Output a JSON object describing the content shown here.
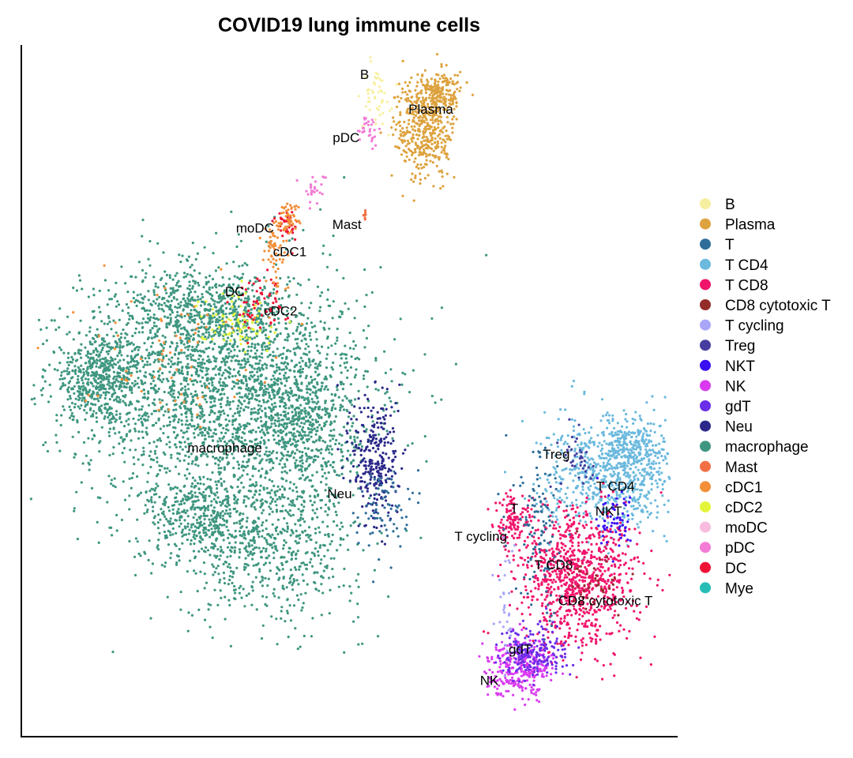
{
  "chart_data": {
    "type": "scatter",
    "title": "COVID19 lung immune cells",
    "xlabel": "",
    "ylabel": "",
    "xlim": [
      0,
      100
    ],
    "ylim": [
      0,
      100
    ],
    "grid": false,
    "legend_position": "right",
    "legend": [
      {
        "name": "B",
        "color": "#F7EFA0"
      },
      {
        "name": "Plasma",
        "color": "#DDA23E"
      },
      {
        "name": "T",
        "color": "#2E6D9A"
      },
      {
        "name": "T CD4",
        "color": "#6BB9DD"
      },
      {
        "name": "T CD8",
        "color": "#F0146B"
      },
      {
        "name": "CD8 cytotoxic T",
        "color": "#922D2A"
      },
      {
        "name": "T cycling",
        "color": "#A9A6F8"
      },
      {
        "name": "Treg",
        "color": "#463E9E"
      },
      {
        "name": "NKT",
        "color": "#3A0FF2"
      },
      {
        "name": "NK",
        "color": "#D93AF0"
      },
      {
        "name": "gdT",
        "color": "#6B2DE8"
      },
      {
        "name": "Neu",
        "color": "#2B2889"
      },
      {
        "name": "macrophage",
        "color": "#3E9680"
      },
      {
        "name": "Mast",
        "color": "#F26F44"
      },
      {
        "name": "cDC1",
        "color": "#F28F38"
      },
      {
        "name": "cDC2",
        "color": "#E2F53A"
      },
      {
        "name": "moDC",
        "color": "#F7BCDF"
      },
      {
        "name": "pDC",
        "color": "#F27BD5"
      },
      {
        "name": "DC",
        "color": "#EE1336"
      },
      {
        "name": "Mye",
        "color": "#27BDB7"
      }
    ],
    "cluster_labels": [
      {
        "text": "B",
        "x": 52.3,
        "y": 95.6
      },
      {
        "text": "Plasma",
        "x": 62.4,
        "y": 90.6
      },
      {
        "text": "pDC",
        "x": 49.5,
        "y": 86.5
      },
      {
        "text": "moDC",
        "x": 35.6,
        "y": 73.4
      },
      {
        "text": "Mast",
        "x": 49.6,
        "y": 73.9
      },
      {
        "text": "cDC1",
        "x": 40.9,
        "y": 70.0
      },
      {
        "text": "DC",
        "x": 32.5,
        "y": 64.2
      },
      {
        "text": "cDC2",
        "x": 39.5,
        "y": 61.4
      },
      {
        "text": "macrophage",
        "x": 31.0,
        "y": 41.6
      },
      {
        "text": "Neu",
        "x": 48.5,
        "y": 35.0
      },
      {
        "text": "Treg",
        "x": 81.5,
        "y": 40.7
      },
      {
        "text": "T CD4",
        "x": 90.5,
        "y": 36.1
      },
      {
        "text": "T",
        "x": 75.1,
        "y": 32.9
      },
      {
        "text": "NKT",
        "x": 89.5,
        "y": 32.5
      },
      {
        "text": "T cycling",
        "x": 70.0,
        "y": 28.8
      },
      {
        "text": "T CD8",
        "x": 81.1,
        "y": 24.7
      },
      {
        "text": "CD8 cytotoxic T",
        "x": 89.0,
        "y": 19.5
      },
      {
        "text": "gdT",
        "x": 76.0,
        "y": 12.5
      },
      {
        "text": "NK",
        "x": 71.3,
        "y": 8.0
      }
    ],
    "clusters": [
      {
        "name": "macrophage",
        "color": "#3E9680",
        "x": 31,
        "y": 50,
        "sx": 11,
        "sy": 9,
        "n": 2400
      },
      {
        "name": "macrophage",
        "color": "#3E9680",
        "x": 12,
        "y": 52,
        "sx": 4,
        "sy": 3,
        "n": 500
      },
      {
        "name": "macrophage",
        "color": "#3E9680",
        "x": 27,
        "y": 61,
        "sx": 6,
        "sy": 3,
        "n": 500
      },
      {
        "name": "macrophage",
        "color": "#3E9680",
        "x": 43,
        "y": 45,
        "sx": 4,
        "sy": 6,
        "n": 500
      },
      {
        "name": "macrophage",
        "color": "#3E9680",
        "x": 38,
        "y": 27,
        "sx": 7,
        "sy": 5,
        "n": 600
      },
      {
        "name": "macrophage",
        "color": "#3E9680",
        "x": 27,
        "y": 32,
        "sx": 4,
        "sy": 3,
        "n": 350
      },
      {
        "name": "Neu",
        "color": "#2B2889",
        "x": 54,
        "y": 40,
        "sx": 1.8,
        "sy": 5,
        "n": 280
      },
      {
        "name": "T",
        "color": "#2E6D9A",
        "x": 55,
        "y": 33,
        "sx": 2,
        "sy": 3,
        "n": 80
      },
      {
        "name": "cDC1",
        "color": "#F28F38",
        "x": 22,
        "y": 56,
        "sx": 7,
        "sy": 5,
        "n": 70
      },
      {
        "name": "cDC2",
        "color": "#E2F53A",
        "x": 33,
        "y": 60,
        "sx": 3,
        "sy": 2,
        "n": 80
      },
      {
        "name": "DC",
        "color": "#EE1336",
        "x": 36,
        "y": 63,
        "sx": 2,
        "sy": 2,
        "n": 60
      },
      {
        "name": "cDC1",
        "color": "#F28F38",
        "x": 38.5,
        "y": 70,
        "sx": 1,
        "sy": 3,
        "n": 60
      },
      {
        "name": "DC",
        "color": "#EE1336",
        "x": 40.5,
        "y": 74,
        "sx": 0.8,
        "sy": 1.2,
        "n": 40
      },
      {
        "name": "cDC1",
        "color": "#F28F38",
        "x": 40.8,
        "y": 75,
        "sx": 0.8,
        "sy": 1.2,
        "n": 50
      },
      {
        "name": "pDC",
        "color": "#F27BD5",
        "x": 44.5,
        "y": 79,
        "sx": 1,
        "sy": 1.2,
        "n": 25
      },
      {
        "name": "Mast",
        "color": "#F26F44",
        "x": 52.5,
        "y": 75.5,
        "sx": 0.3,
        "sy": 0.3,
        "n": 8
      },
      {
        "name": "Plasma",
        "color": "#DDA23E",
        "x": 61.5,
        "y": 88,
        "sx": 2.3,
        "sy": 3.8,
        "n": 450
      },
      {
        "name": "Plasma",
        "color": "#DDA23E",
        "x": 64,
        "y": 93,
        "sx": 1.5,
        "sy": 1.5,
        "n": 150
      },
      {
        "name": "B",
        "color": "#F7EFA0",
        "x": 54,
        "y": 93,
        "sx": 1,
        "sy": 2.5,
        "n": 50
      },
      {
        "name": "pDC",
        "color": "#F27BD5",
        "x": 53,
        "y": 87.5,
        "sx": 1,
        "sy": 1.2,
        "n": 30
      },
      {
        "name": "T CD4",
        "color": "#6BB9DD",
        "x": 90,
        "y": 38,
        "sx": 5,
        "sy": 4,
        "n": 700
      },
      {
        "name": "T CD4",
        "color": "#6BB9DD",
        "x": 93,
        "y": 42,
        "sx": 2.5,
        "sy": 2,
        "n": 200
      },
      {
        "name": "T CD8",
        "color": "#F0146B",
        "x": 85,
        "y": 23,
        "sx": 4.5,
        "sy": 5,
        "n": 900
      },
      {
        "name": "T CD8",
        "color": "#F0146B",
        "x": 75,
        "y": 31,
        "sx": 1.5,
        "sy": 2,
        "n": 120
      },
      {
        "name": "CD8 cytotoxic T",
        "color": "#922D2A",
        "x": 87,
        "y": 22,
        "sx": 2,
        "sy": 2,
        "n": 40
      },
      {
        "name": "T",
        "color": "#2E6D9A",
        "x": 79,
        "y": 29,
        "sx": 2,
        "sy": 6,
        "n": 120
      },
      {
        "name": "NKT",
        "color": "#3A0FF2",
        "x": 91,
        "y": 31,
        "sx": 1.5,
        "sy": 2,
        "n": 60
      },
      {
        "name": "Treg",
        "color": "#463E9E",
        "x": 85,
        "y": 40,
        "sx": 1.5,
        "sy": 2,
        "n": 40
      },
      {
        "name": "NK",
        "color": "#D93AF0",
        "x": 76,
        "y": 10,
        "sx": 2.5,
        "sy": 2,
        "n": 300
      },
      {
        "name": "gdT",
        "color": "#6B2DE8",
        "x": 78,
        "y": 12,
        "sx": 2.5,
        "sy": 2,
        "n": 200
      },
      {
        "name": "T cycling",
        "color": "#A9A6F8",
        "x": 74,
        "y": 20,
        "sx": 1,
        "sy": 4,
        "n": 30
      }
    ]
  }
}
